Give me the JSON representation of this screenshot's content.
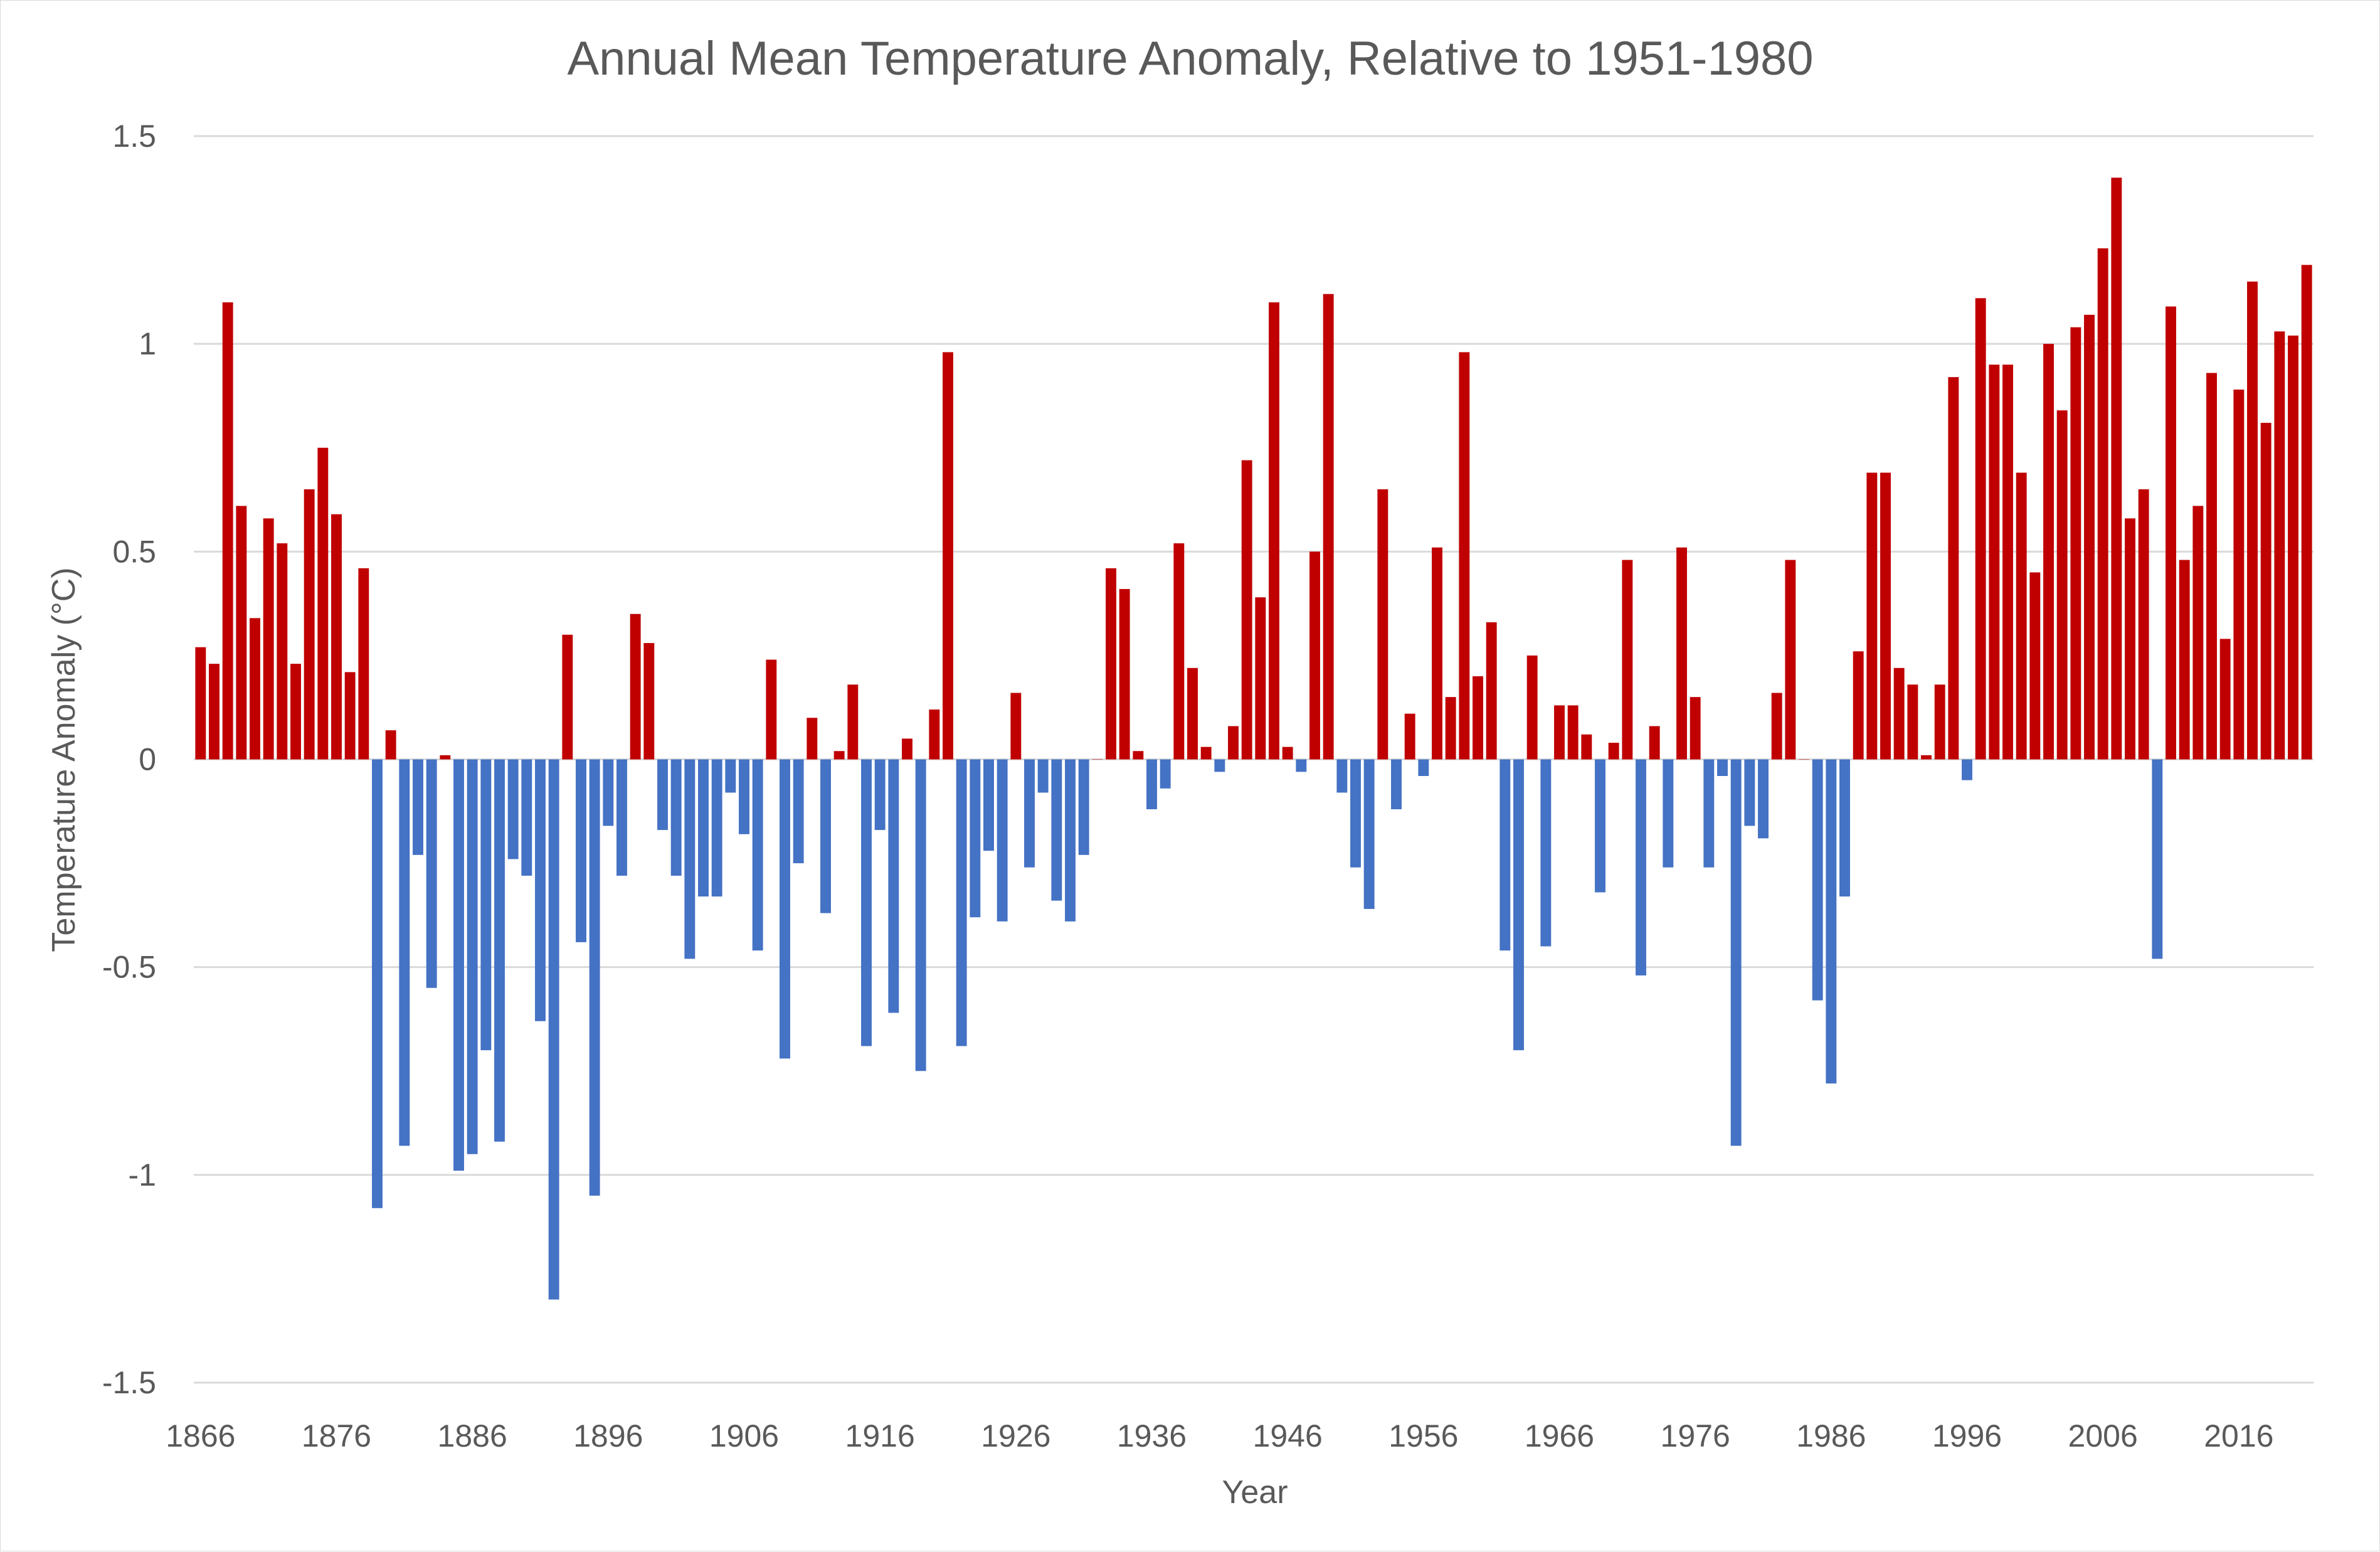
{
  "colors": {
    "positive": "#c00000",
    "negative": "#4472c4",
    "gridline": "#d9d9d9",
    "text": "#595959"
  },
  "chart_data": {
    "type": "bar",
    "title": "Annual Mean Temperature Anomaly, Relative to 1951-1980",
    "xlabel": "Year",
    "ylabel": "Temperature Anomaly (°C)",
    "ylim": [
      -1.5,
      1.5
    ],
    "yticks": [
      1.5,
      1,
      0.5,
      0,
      -0.5,
      -1,
      -1.5
    ],
    "ytick_labels": [
      "1.5",
      "1",
      "0.5",
      "0",
      "-0.5",
      "-1",
      "-1.5"
    ],
    "xtick_labels": [
      "1866",
      "1876",
      "1886",
      "1896",
      "1906",
      "1916",
      "1926",
      "1936",
      "1946",
      "1956",
      "1966",
      "1976",
      "1986",
      "1996",
      "2006",
      "2016"
    ],
    "grid": true,
    "legend": "none",
    "start_year": 1866,
    "values": [
      0.27,
      0.23,
      1.1,
      0.61,
      0.34,
      0.58,
      0.52,
      0.23,
      0.65,
      0.75,
      0.59,
      0.21,
      0.46,
      -1.08,
      0.07,
      -0.93,
      -0.23,
      -0.55,
      0.01,
      -0.99,
      -0.95,
      -0.7,
      -0.92,
      -0.24,
      -0.28,
      -0.63,
      -1.3,
      0.3,
      -0.44,
      -1.05,
      -0.16,
      -0.28,
      0.35,
      0.28,
      -0.17,
      -0.28,
      -0.48,
      -0.33,
      -0.33,
      -0.08,
      -0.18,
      -0.46,
      0.24,
      -0.72,
      -0.25,
      0.1,
      -0.37,
      0.02,
      0.18,
      -0.69,
      -0.17,
      -0.61,
      0.05,
      -0.75,
      0.12,
      0.98,
      -0.69,
      -0.38,
      -0.22,
      -0.39,
      0.16,
      -0.26,
      -0.08,
      -0.34,
      -0.39,
      -0.23,
      0.0,
      0.46,
      0.41,
      0.02,
      -0.12,
      -0.07,
      0.52,
      0.22,
      0.03,
      -0.03,
      0.08,
      0.72,
      0.39,
      1.1,
      0.03,
      -0.03,
      0.5,
      1.12,
      -0.08,
      -0.26,
      -0.36,
      0.65,
      -0.12,
      0.11,
      -0.04,
      0.51,
      0.15,
      0.98,
      0.2,
      0.33,
      -0.46,
      -0.7,
      0.25,
      -0.45,
      0.13,
      0.13,
      0.06,
      -0.32,
      0.04,
      0.48,
      -0.52,
      0.08,
      -0.26,
      0.51,
      0.15,
      -0.26,
      -0.04,
      -0.93,
      -0.16,
      -0.19,
      0.16,
      0.48,
      0.0,
      -0.58,
      -0.78,
      -0.33,
      0.26,
      0.69,
      0.69,
      0.22,
      0.18,
      0.01,
      0.18,
      0.92,
      -0.05,
      1.11,
      0.95,
      0.95,
      0.69,
      0.45,
      1.0,
      0.84,
      1.04,
      1.07,
      1.23,
      1.4,
      0.58,
      0.65,
      -0.48,
      1.09,
      0.48,
      0.61,
      0.93,
      0.29,
      0.89,
      1.15,
      0.81,
      1.03,
      1.02,
      1.19
    ]
  }
}
